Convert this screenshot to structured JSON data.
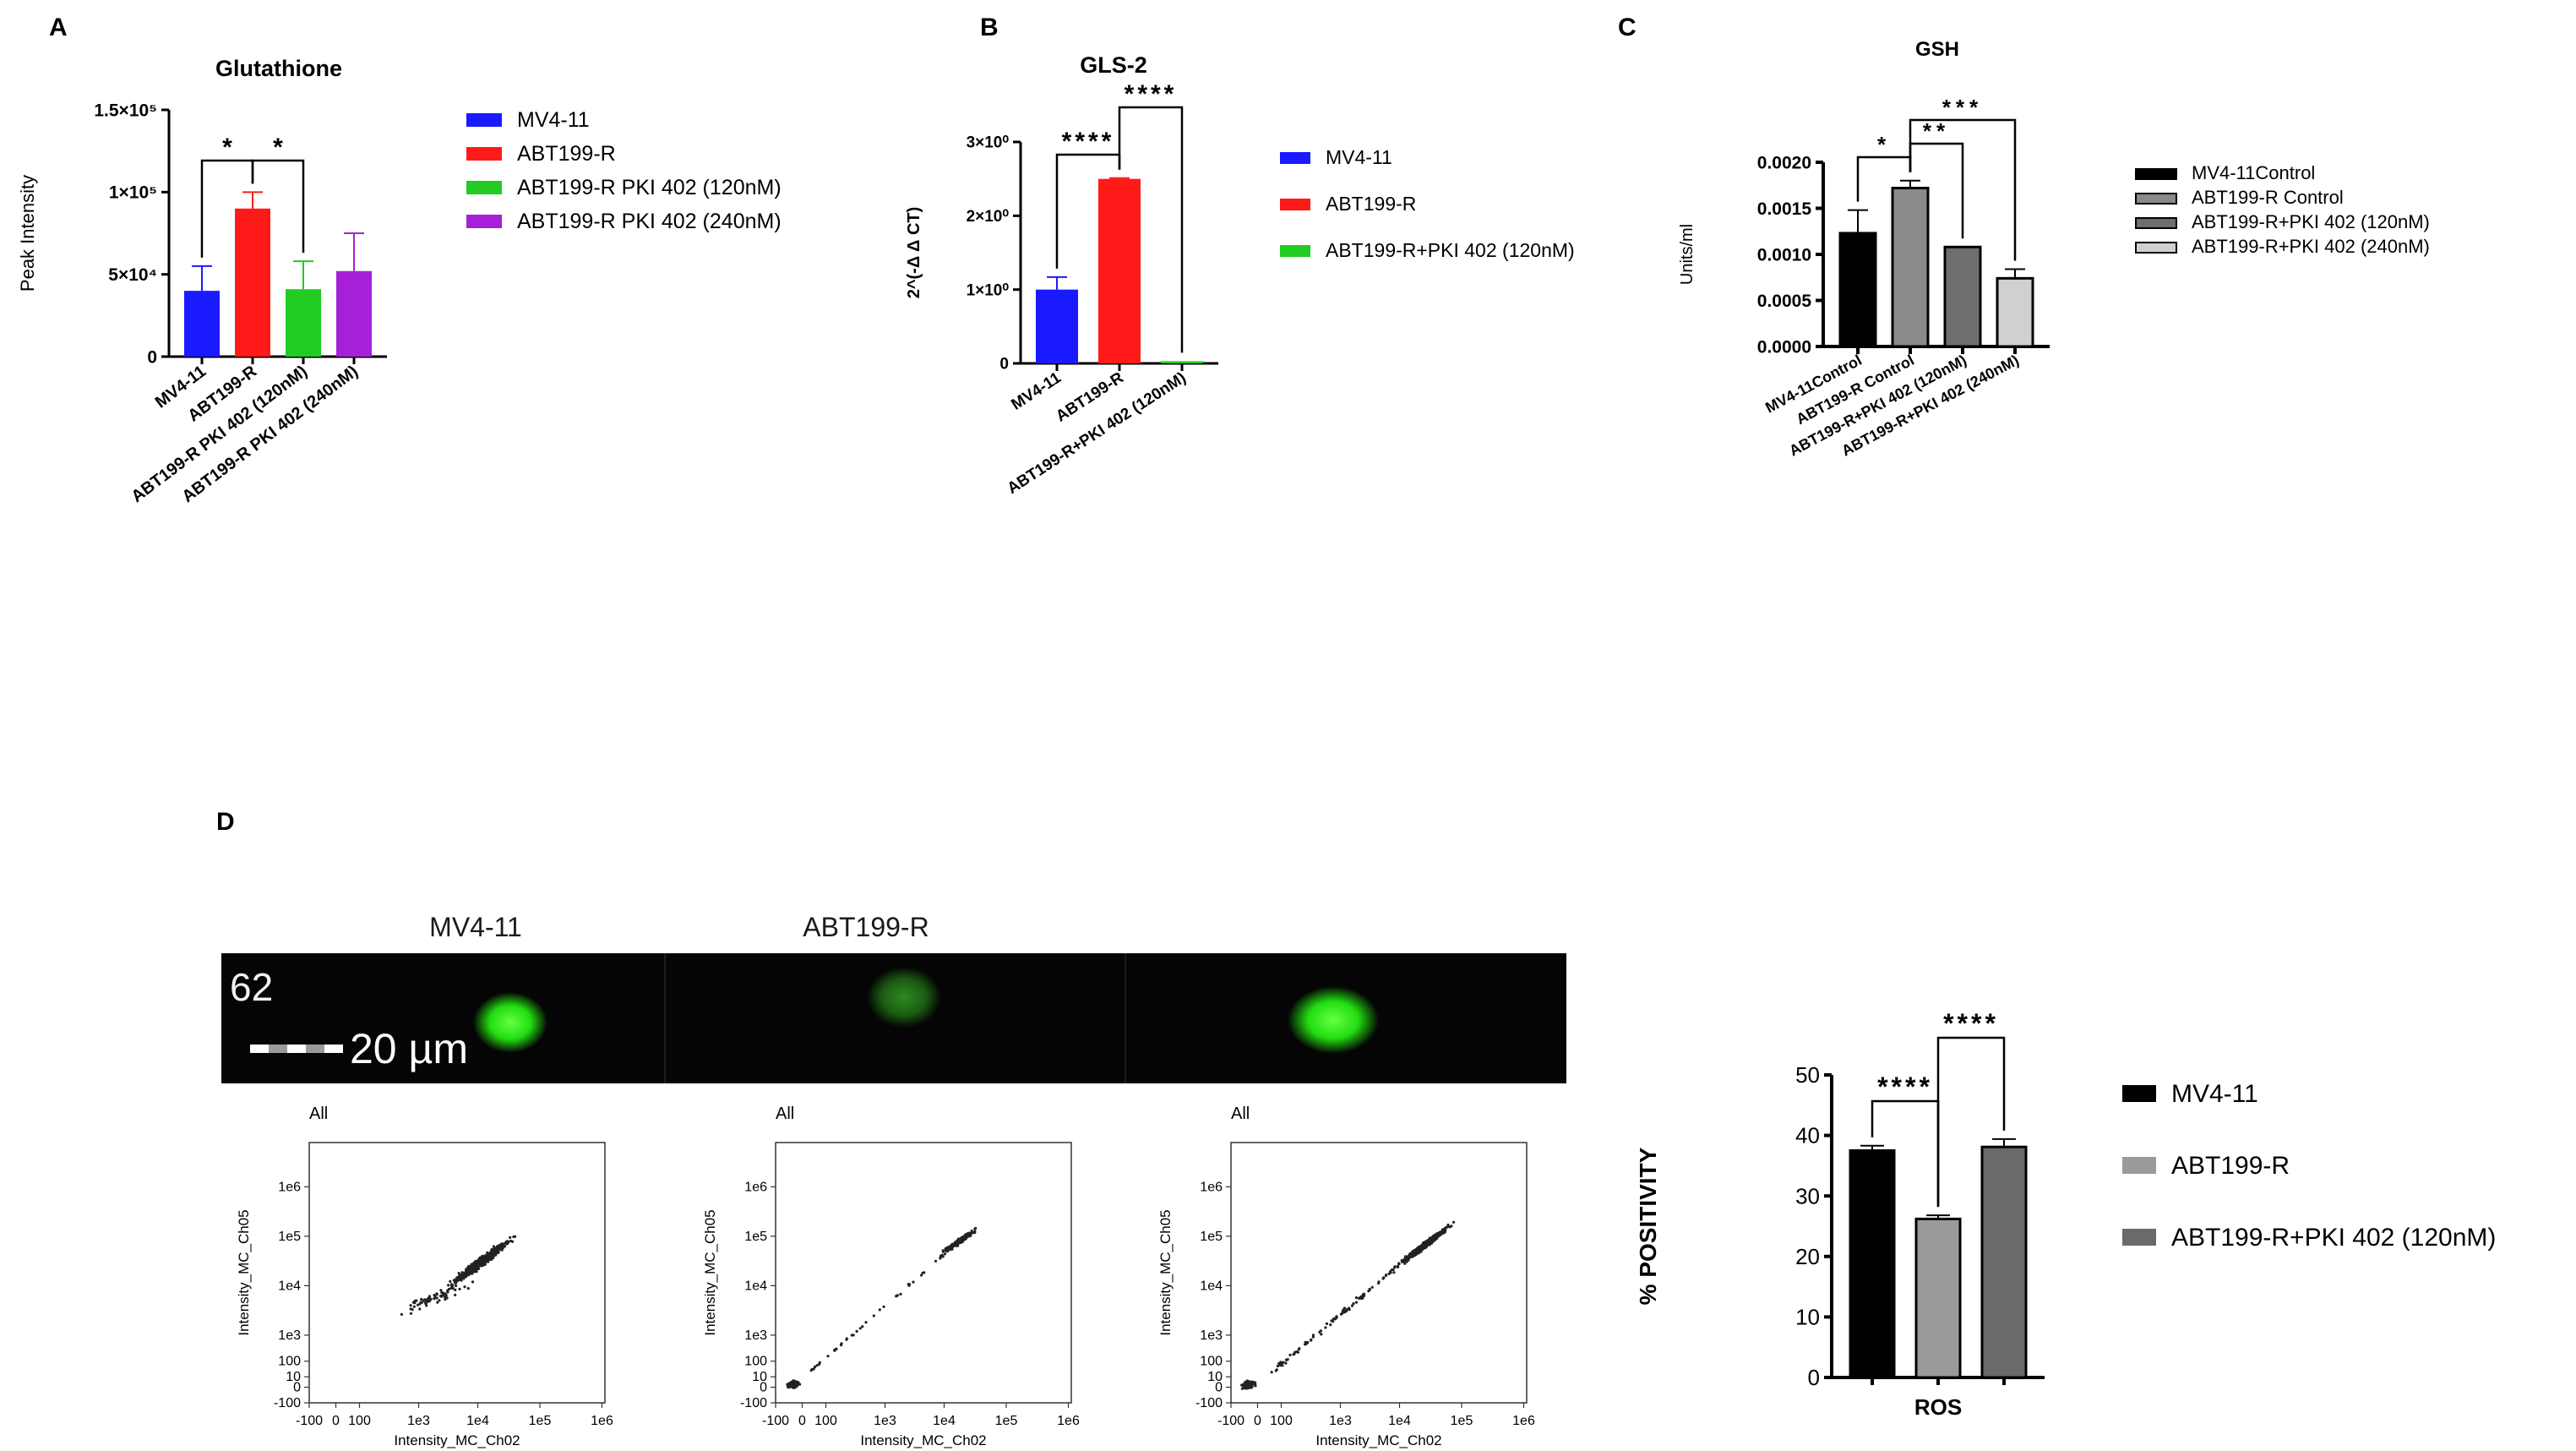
{
  "chart_data": [
    {
      "panel": "A",
      "type": "bar",
      "title": "Glutathione",
      "ylabel": "Peak Intensity",
      "ylim": [
        0,
        150000
      ],
      "ytick_labels": [
        "0",
        "5×10⁴",
        "1×10⁵",
        "1.5×10⁵"
      ],
      "ytick_values": [
        0,
        50000,
        100000,
        150000
      ],
      "categories": [
        "MV4-11",
        "ABT199-R",
        "ABT199-R PKI 402 (120nM)",
        "ABT199-R PKI 402 (240nM)"
      ],
      "values": [
        40000,
        90000,
        41000,
        52000
      ],
      "errors": [
        15000,
        10000,
        17000,
        23000
      ],
      "colors": [
        "#1a1aff",
        "#ff1a1a",
        "#22cc22",
        "#a620d8"
      ],
      "legend": [
        "MV4-11",
        "ABT199-R",
        "ABT199-R PKI 402 (120nM)",
        "ABT199-R PKI 402 (240nM)"
      ],
      "significance": [
        {
          "from": 0,
          "to": 1,
          "label": "*"
        },
        {
          "from": 1,
          "to": 2,
          "label": "*"
        }
      ]
    },
    {
      "panel": "B",
      "type": "bar",
      "title": "GLS-2",
      "ylabel": "2^(-Δ Δ CT)",
      "ylim": [
        0,
        3
      ],
      "ytick_labels": [
        "0",
        "1×10⁰",
        "2×10⁰",
        "3×10⁰"
      ],
      "ytick_values": [
        0,
        1,
        2,
        3
      ],
      "categories": [
        "MV4-11",
        "ABT199-R",
        "ABT199-R+PKI 402 (120nM)"
      ],
      "values": [
        1.0,
        2.5,
        0.03
      ],
      "errors": [
        0.17,
        0.01,
        0.0
      ],
      "colors": [
        "#1a1aff",
        "#ff1a1a",
        "#22cc22"
      ],
      "legend": [
        "MV4-11",
        "ABT199-R",
        "ABT199-R+PKI 402 (120nM)"
      ],
      "significance": [
        {
          "from": 0,
          "to": 1,
          "label": "****"
        },
        {
          "from": 1,
          "to": 2,
          "label": "****"
        }
      ]
    },
    {
      "panel": "C",
      "type": "bar",
      "title": "GSH",
      "ylabel": "Units/ml",
      "ylim": [
        0,
        0.002
      ],
      "ytick_labels": [
        "0.0000",
        "0.0005",
        "0.0010",
        "0.0015",
        "0.0020"
      ],
      "ytick_values": [
        0,
        0.0005,
        0.001,
        0.0015,
        0.002
      ],
      "categories": [
        "MV4-11Control",
        "ABT199-R Control",
        "ABT199-R+PKI 402 (120nM)",
        "ABT199-R+PKI 402 (240nM)"
      ],
      "values": [
        0.00123,
        0.00172,
        0.00108,
        0.00074
      ],
      "errors": [
        0.00025,
        8e-05,
        0.0,
        0.0001
      ],
      "colors": [
        "#000000",
        "#8a8a8a",
        "#6e6e6e",
        "#d0d0d0"
      ],
      "legend": [
        "MV4-11Control",
        "ABT199-R Control",
        "ABT199-R+PKI 402 (120nM)",
        "ABT199-R+PKI 402 (240nM)"
      ],
      "significance": [
        {
          "from": 0,
          "to": 1,
          "label": "*"
        },
        {
          "from": 1,
          "to": 2,
          "label": "**"
        },
        {
          "from": 1,
          "to": 3,
          "label": "***"
        }
      ]
    },
    {
      "panel": "D",
      "type": "bar",
      "title": "",
      "xlabel": "ROS",
      "ylabel": "% POSITIVITY",
      "ylim": [
        0,
        50
      ],
      "ytick_labels": [
        "0",
        "10",
        "20",
        "30",
        "40",
        "50"
      ],
      "ytick_values": [
        0,
        10,
        20,
        30,
        40,
        50
      ],
      "categories": [
        "MV4-11",
        "ABT199-R",
        "ABT199-R+PKI 402 (120nM)"
      ],
      "values": [
        37.5,
        26.2,
        38.1
      ],
      "errors": [
        0.8,
        0.6,
        1.3
      ],
      "colors": [
        "#000000",
        "#9a9a9a",
        "#6a6a6a"
      ],
      "legend": [
        "MV4-11",
        "ABT199-R",
        "ABT199-R+PKI 402 (120nM)"
      ],
      "significance": [
        {
          "from": 0,
          "to": 1,
          "label": "****"
        },
        {
          "from": 1,
          "to": 2,
          "label": "****"
        }
      ]
    },
    {
      "panel": "D-scatter",
      "type": "scatter",
      "plots": [
        {
          "gate": "All",
          "xlabel": "Intensity_MC_Ch02",
          "ylabel": "Intensity_MC_Ch05",
          "population": "main"
        },
        {
          "gate": "All",
          "xlabel": "Intensity_MC_Ch02",
          "ylabel": "Intensity_MC_Ch05",
          "population": "split"
        },
        {
          "gate": "All",
          "xlabel": "Intensity_MC_Ch02",
          "ylabel": "Intensity_MC_Ch05",
          "population": "split-dense"
        }
      ],
      "xtick_labels": [
        "-100",
        "0",
        "100",
        "1e3",
        "1e4",
        "1e5",
        "1e6"
      ],
      "ytick_labels": [
        "-100",
        "0",
        "10",
        "100",
        "1e3",
        "1e4",
        "1e5",
        "1e6"
      ]
    }
  ],
  "panel_labels": {
    "a": "A",
    "b": "B",
    "c": "C",
    "d": "D"
  },
  "microscopy": {
    "labels": [
      "MV4-11",
      "ABT199-R"
    ],
    "object_number": "62",
    "scale_label": "20 µm",
    "spot_intensity": [
      1.0,
      0.35,
      1.0
    ]
  }
}
